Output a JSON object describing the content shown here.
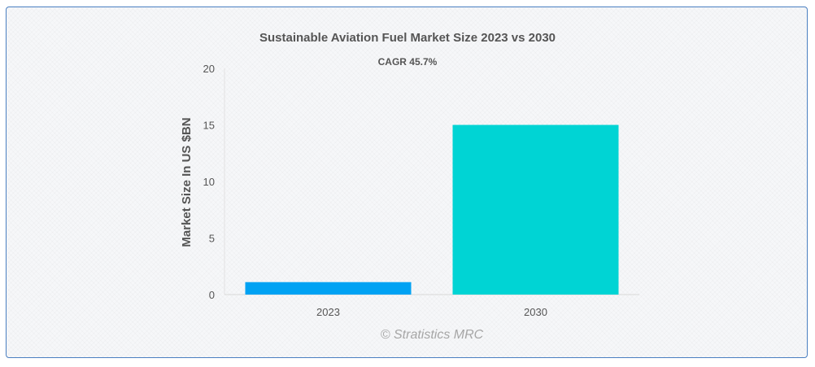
{
  "chart_data": {
    "type": "bar",
    "title": "Sustainable Aviation Fuel Market Size 2023 vs 2030",
    "subtitle": "CAGR 45.7%",
    "categories": [
      "2023",
      "2030"
    ],
    "values": [
      1.1,
      15
    ],
    "bar_colors": [
      "#00a2f3",
      "#00d4d4"
    ],
    "xlabel": "",
    "ylabel": "Market Size In US $BN",
    "ylim": [
      0,
      20
    ],
    "yticks": [
      0,
      5,
      10,
      15,
      20
    ],
    "grid": false,
    "legend": "none",
    "credit": "© Stratistics MRC"
  }
}
